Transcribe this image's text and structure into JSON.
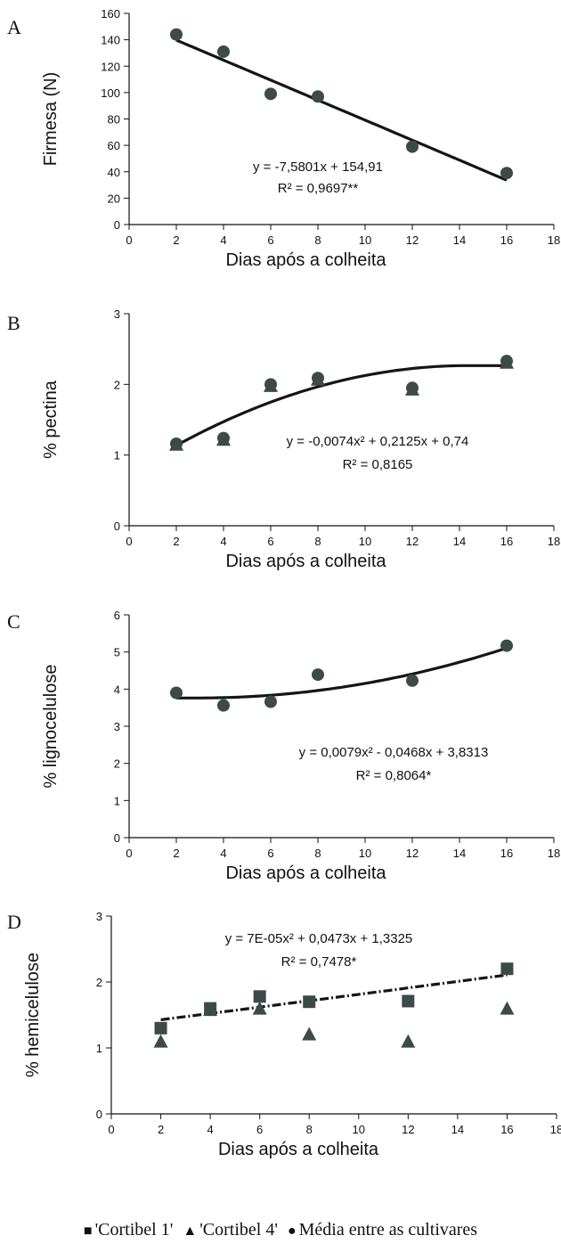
{
  "chart_data": [
    {
      "panel": "A",
      "type": "scatter",
      "xlabel": "Dias após a colheita",
      "ylabel": "Firmesa (N)",
      "xlim": [
        0,
        18
      ],
      "ylim": [
        0,
        160
      ],
      "xticks": [
        0,
        2,
        4,
        6,
        8,
        10,
        12,
        14,
        16,
        18
      ],
      "yticks": [
        0,
        20,
        40,
        60,
        80,
        100,
        120,
        140,
        160
      ],
      "series": [
        {
          "marker": "circle",
          "x": [
            2,
            4,
            6,
            8,
            12,
            16
          ],
          "y": [
            144,
            131,
            99,
            97,
            59,
            39
          ]
        }
      ],
      "trendline": {
        "kind": "linear",
        "coef": [
          154.91,
          -7.5801
        ],
        "range": [
          2,
          16
        ],
        "style": "solid"
      },
      "equation": "y = -7,5801x + 154,91",
      "r2": "R² = 0,9697**",
      "grid": false
    },
    {
      "panel": "B",
      "type": "scatter",
      "xlabel": "Dias após a colheita",
      "ylabel": "% pectina",
      "xlim": [
        0,
        18
      ],
      "ylim": [
        0,
        3
      ],
      "xticks": [
        0,
        2,
        4,
        6,
        8,
        10,
        12,
        14,
        16,
        18
      ],
      "yticks": [
        0,
        1,
        2,
        3
      ],
      "series": [
        {
          "marker": "triangle",
          "x": [
            2,
            4,
            6,
            8,
            12,
            16
          ],
          "y": [
            1.15,
            1.22,
            1.98,
            2.07,
            1.93,
            2.31
          ]
        },
        {
          "marker": "circle",
          "x": [
            2,
            4,
            6,
            8,
            12,
            16
          ],
          "y": [
            1.16,
            1.24,
            2.0,
            2.09,
            1.95,
            2.33
          ]
        }
      ],
      "trendline": {
        "kind": "quad-plateau",
        "coef": [
          0.74,
          0.2125,
          -0.0074
        ],
        "range": [
          2,
          16
        ],
        "style": "solid"
      },
      "equation": "y = -0,0074x² + 0,2125x + 0,74",
      "r2": "R² = 0,8165",
      "grid": false
    },
    {
      "panel": "C",
      "type": "scatter",
      "xlabel": "Dias após a colheita",
      "ylabel": "% lignocelulose",
      "xlim": [
        0,
        18
      ],
      "ylim": [
        0,
        6
      ],
      "xticks": [
        0,
        2,
        4,
        6,
        8,
        10,
        12,
        14,
        16,
        18
      ],
      "yticks": [
        0,
        1,
        2,
        3,
        4,
        5,
        6
      ],
      "series": [
        {
          "marker": "circle",
          "x": [
            2,
            4,
            6,
            8,
            12,
            16
          ],
          "y": [
            3.9,
            3.56,
            3.66,
            4.39,
            4.23,
            5.17
          ]
        }
      ],
      "trendline": {
        "kind": "quad-plateau-left",
        "coef": [
          3.8313,
          -0.0468,
          0.0079
        ],
        "range": [
          2,
          16
        ],
        "style": "solid"
      },
      "equation": "y = 0,0079x² - 0,0468x + 3,8313",
      "r2": "R² = 0,8064*",
      "grid": false
    },
    {
      "panel": "D",
      "type": "scatter",
      "xlabel": "Dias após a colheita",
      "ylabel": "% hemicelulose",
      "xlim": [
        0,
        18
      ],
      "ylim": [
        0,
        3
      ],
      "xticks": [
        0,
        2,
        4,
        6,
        8,
        10,
        12,
        14,
        16,
        18
      ],
      "yticks": [
        0,
        1,
        2,
        3
      ],
      "series": [
        {
          "marker": "square",
          "x": [
            2,
            4,
            6,
            8,
            12,
            16
          ],
          "y": [
            1.3,
            1.6,
            1.78,
            1.7,
            1.71,
            2.2
          ]
        },
        {
          "marker": "triangle",
          "x": [
            2,
            4,
            6,
            8,
            12,
            16
          ],
          "y": [
            1.1,
            1.58,
            1.6,
            1.21,
            1.1,
            1.6
          ]
        }
      ],
      "trendline": {
        "kind": "quadratic",
        "coef": [
          1.3325,
          0.0473,
          7e-05
        ],
        "range": [
          2,
          16
        ],
        "style": "dashed"
      },
      "equation": "y = 7E-05x² + 0,0473x + 1,3325",
      "r2": "R² = 0,7478*",
      "grid": false
    }
  ],
  "legend": [
    {
      "symbol": "■",
      "label": "'Cortibel 1'"
    },
    {
      "symbol": "▲",
      "label": "'Cortibel 4'"
    },
    {
      "symbol": "●",
      "label": "Média entre as cultivares"
    }
  ],
  "colors": {
    "marker": "#3c4a48",
    "line": "#151515",
    "axis": "#111111"
  }
}
